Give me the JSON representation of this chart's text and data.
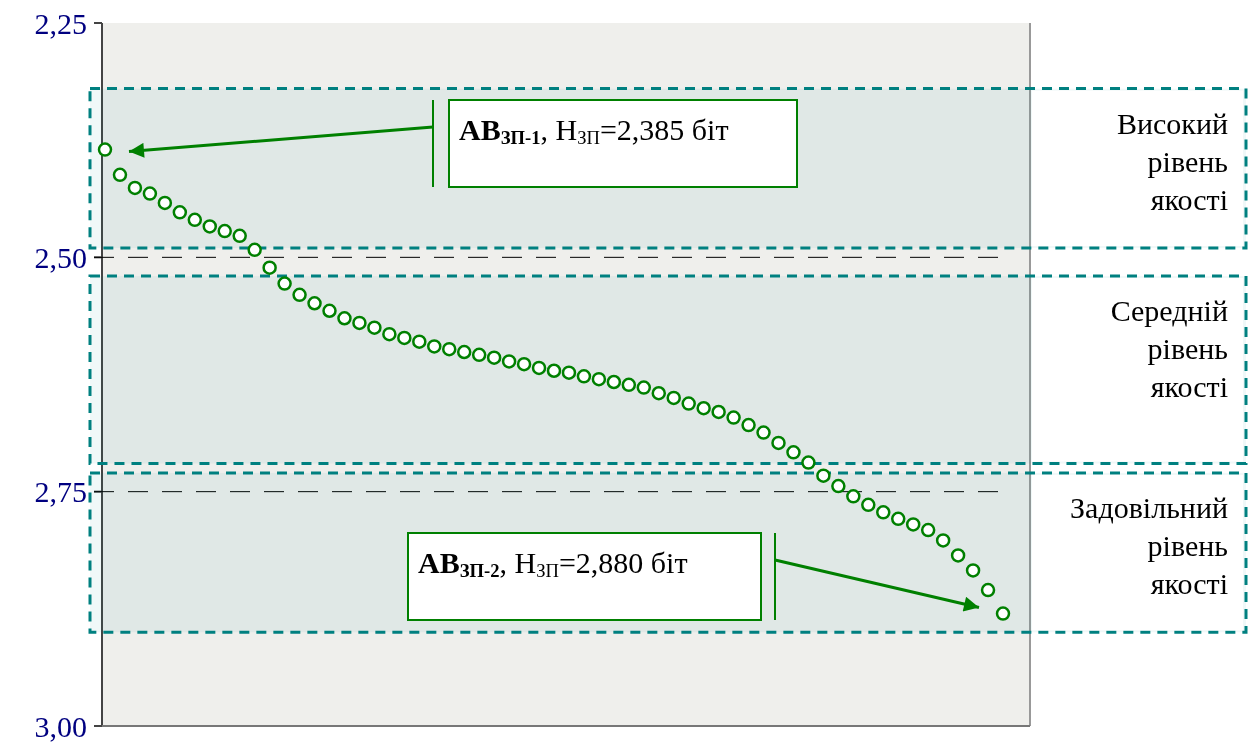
{
  "chart_data": {
    "type": "scatter",
    "categories": [
      null,
      null,
      null,
      null,
      null,
      null,
      null,
      null,
      null,
      null,
      null,
      null,
      null,
      null,
      null,
      null,
      null,
      null,
      null,
      null,
      null,
      null,
      null,
      null,
      null,
      null,
      null,
      null,
      null,
      null,
      null,
      null,
      null,
      null,
      null,
      null,
      null,
      null,
      null,
      null,
      null,
      null,
      null,
      null,
      null,
      null,
      null,
      null,
      null,
      null,
      null,
      null,
      null,
      null,
      null,
      null,
      null,
      null,
      null,
      null,
      null
    ],
    "series": [
      {
        "color": "#008000",
        "values": [
          2.385,
          2.412,
          2.426,
          2.432,
          2.442,
          2.452,
          2.46,
          2.467,
          2.472,
          2.477,
          2.492,
          2.511,
          2.528,
          2.54,
          2.549,
          2.557,
          2.565,
          2.57,
          2.575,
          2.582,
          2.586,
          2.59,
          2.595,
          2.598,
          2.601,
          2.604,
          2.607,
          2.611,
          2.614,
          2.618,
          2.621,
          2.623,
          2.627,
          2.63,
          2.633,
          2.636,
          2.639,
          2.645,
          2.65,
          2.656,
          2.661,
          2.665,
          2.671,
          2.679,
          2.687,
          2.698,
          2.708,
          2.719,
          2.733,
          2.744,
          2.755,
          2.764,
          2.772,
          2.779,
          2.785,
          2.791,
          2.802,
          2.818,
          2.834,
          2.855,
          2.88
        ]
      }
    ],
    "ylim": [
      3.0,
      2.25
    ],
    "yticks": [
      {
        "value": 2.25,
        "label": "2,25"
      },
      {
        "value": 2.5,
        "label": "2,50"
      },
      {
        "value": 2.75,
        "label": "2,75"
      },
      {
        "value": 3.0,
        "label": "3,00"
      }
    ],
    "marker": "circle",
    "grid": false,
    "ref_lines": [
      {
        "axis": "y",
        "value": 2.5,
        "color": "#000000",
        "line_style": "dashed"
      },
      {
        "axis": "y",
        "value": 2.75,
        "color": "#000000",
        "line_style": "dashed"
      }
    ],
    "bands": [
      {
        "axis": "y",
        "from": 2.32,
        "to": 2.49,
        "label": "Високий рівень якості",
        "color": "#008080"
      },
      {
        "axis": "y",
        "from": 2.52,
        "to": 2.72,
        "label": "Середній рівень якості",
        "color": "#008080"
      },
      {
        "axis": "y",
        "from": 2.73,
        "to": 2.9,
        "label": "Задовільний рівень якості",
        "color": "#008080"
      }
    ],
    "annotations": [
      "АВ$_{ЗП-1}$, Н$_{ЗП}$=2,385 біт",
      "АВ$_{ЗП-2}$, Н$_{ЗП}$=2,880 біт"
    ]
  }
}
